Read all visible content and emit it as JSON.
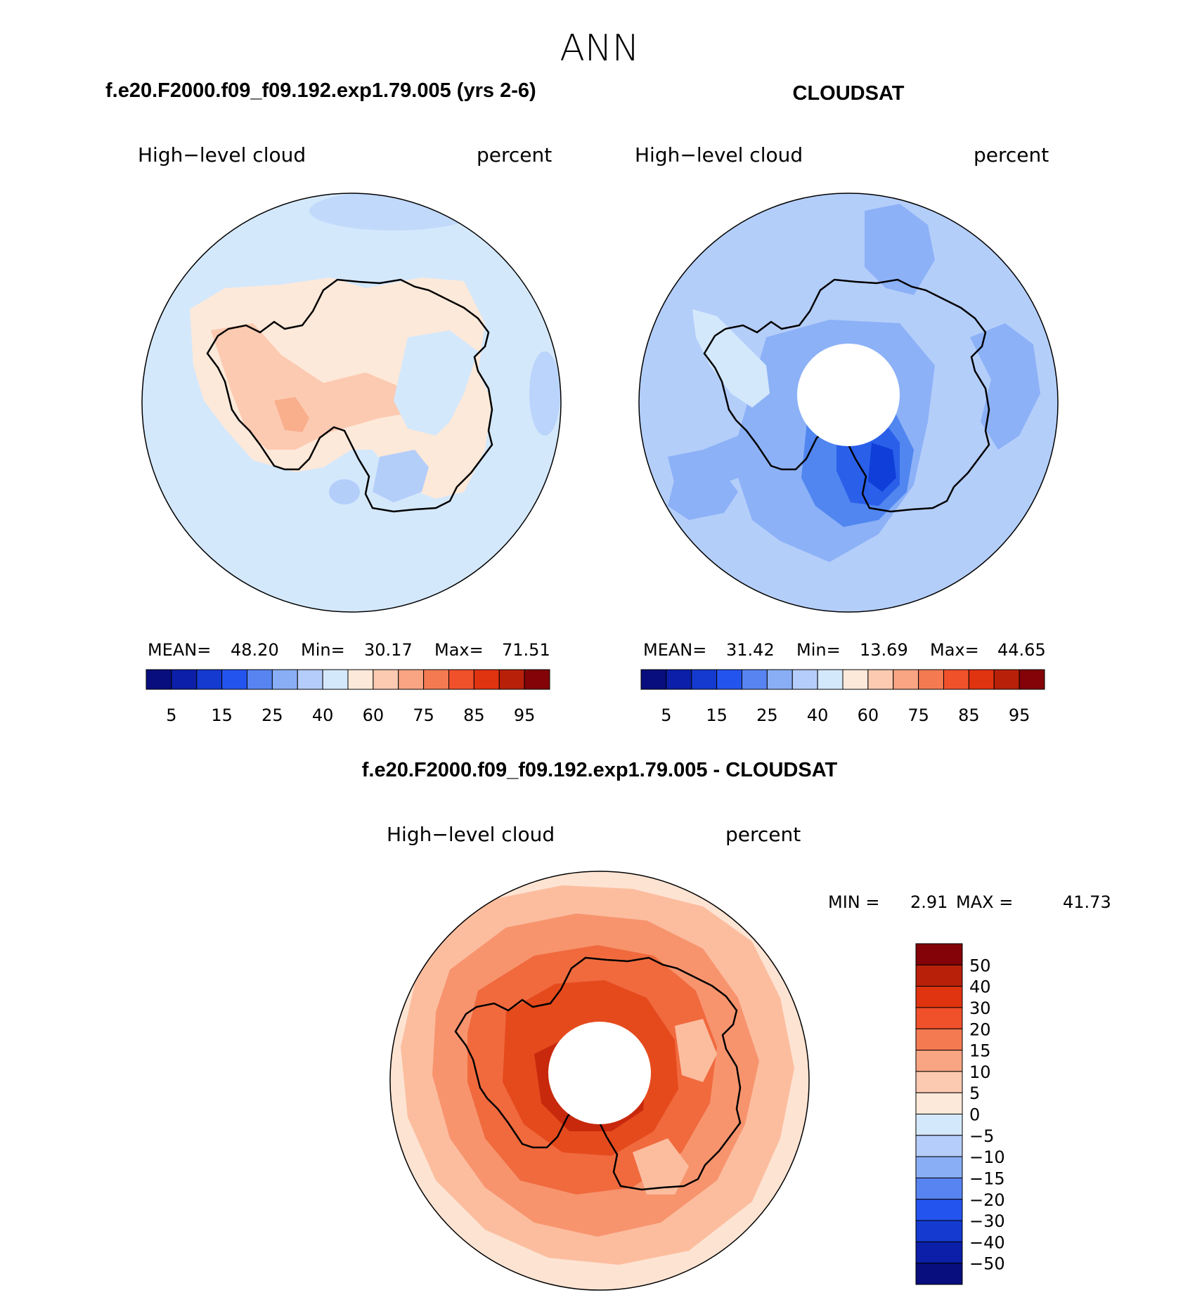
{
  "title": "ANN",
  "panels": [
    {
      "heading": "f.e20.F2000.f09_f09.192.exp1.79.005 (yrs 2-6)",
      "variable": "High−level cloud",
      "units": "percent",
      "stats": {
        "mean_label": "MEAN=",
        "mean": "48.20",
        "min_label": "Min=",
        "min": "30.17",
        "max_label": "Max=",
        "max": "71.51"
      },
      "regions": {
        "ocean": "#d4e8fc",
        "land_base": "#fde9d9",
        "land_warm": "#fccab1",
        "land_core": "#f9ae8c",
        "cool_patch": "#b4cefa"
      }
    },
    {
      "heading": "CLOUDSAT",
      "variable": "High−level cloud",
      "units": "percent",
      "stats": {
        "mean_label": "MEAN=",
        "mean": "31.42",
        "min_label": "Min=",
        "min": "13.69",
        "max_label": "Max=",
        "max": "44.65"
      },
      "regions": {
        "ocean": "#b4cefa",
        "mid": "#8cb1f7",
        "deep": "#5186f0",
        "deeper": "#2a5fea",
        "core": "#0f3fd8",
        "light": "#d4e8fc"
      }
    }
  ],
  "top_colorbar": {
    "colors": [
      "#080e7d",
      "#0b1fa8",
      "#143ad0",
      "#2454ee",
      "#5884f2",
      "#89aef6",
      "#b5cdfa",
      "#d4e8fc",
      "#fde9d9",
      "#fccab1",
      "#f9a482",
      "#f47a52",
      "#f0502a",
      "#e0330f",
      "#b8200a",
      "#830308"
    ],
    "labels": [
      "5",
      "15",
      "25",
      "40",
      "60",
      "75",
      "85",
      "95"
    ]
  },
  "diff": {
    "heading": "f.e20.F2000.f09_f09.192.exp1.79.005 - CLOUDSAT",
    "variable": "High−level cloud",
    "units": "percent",
    "min_label": "MIN =",
    "min": "2.91",
    "max_label": "MAX =",
    "max": "41.73",
    "regions": {
      "outer": "#fde3d2",
      "ring1": "#fcbd9f",
      "ring2": "#f7946e",
      "ring3": "#f06a3e",
      "ring4": "#e54a1d",
      "ring5": "#c8290d",
      "patch": "#fcbd9f"
    },
    "colorbar": {
      "colors": [
        "#830308",
        "#b8200a",
        "#e0330f",
        "#f0502a",
        "#f47a52",
        "#f9a482",
        "#fccab1",
        "#fde9d9",
        "#d4e8fc",
        "#b5cdfa",
        "#89aef6",
        "#5884f2",
        "#2454ee",
        "#143ad0",
        "#0b1fa8",
        "#080e7d"
      ],
      "labels": [
        "50",
        "40",
        "30",
        "20",
        "15",
        "10",
        "5",
        "0",
        "−5",
        "−10",
        "−15",
        "−20",
        "−30",
        "−40",
        "−50"
      ]
    }
  }
}
